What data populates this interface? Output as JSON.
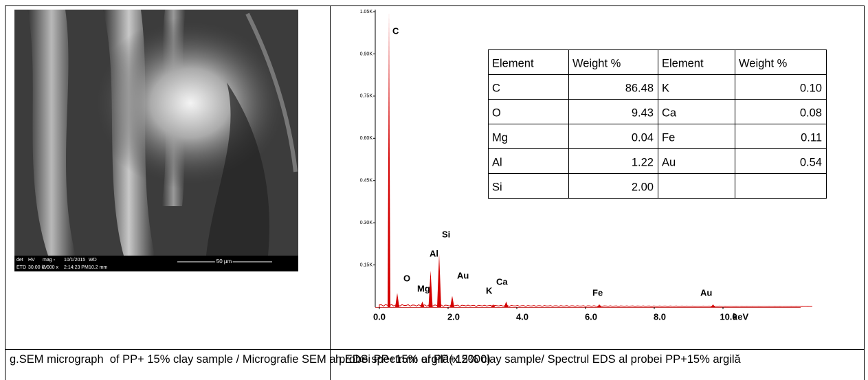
{
  "sem": {
    "info": [
      "det",
      "HV",
      "mag ▫",
      "10/1/2015",
      "WD",
      "ETD",
      "30.00 kV",
      "2 000 x",
      "2:14:23 PM",
      "10.2 mm"
    ],
    "scale_bar": "50 µm"
  },
  "spectrum": {
    "type": "spectrum",
    "color": "#d40000",
    "ylim": [
      0,
      1.05
    ],
    "yticks": [
      {
        "value": 0.15,
        "label": "0.15K"
      },
      {
        "value": 0.3,
        "label": "0.30K"
      },
      {
        "value": 0.45,
        "label": "0.45K"
      },
      {
        "value": 0.6,
        "label": "0.60K"
      },
      {
        "value": 0.75,
        "label": "0.75K"
      },
      {
        "value": 0.9,
        "label": "0.90K"
      },
      {
        "value": 1.05,
        "label": "1.05K"
      }
    ],
    "xlim": [
      0,
      12.6
    ],
    "xticks": [
      {
        "value": 0,
        "label": "0.0"
      },
      {
        "value": 2,
        "label": "2.0"
      },
      {
        "value": 4,
        "label": "4.0"
      },
      {
        "value": 6,
        "label": "6.0"
      },
      {
        "value": 8,
        "label": "8.0"
      },
      {
        "value": 10,
        "label": "10.0"
      }
    ],
    "x_label": "keV",
    "peaks": [
      {
        "label": "C",
        "energy": 0.28,
        "counts": 1.05
      },
      {
        "label": "O",
        "energy": 0.52,
        "counts": 0.05
      },
      {
        "label": "Mg",
        "energy": 1.25,
        "counts": 0.02
      },
      {
        "label": "Al",
        "energy": 1.49,
        "counts": 0.13
      },
      {
        "label": "Si",
        "energy": 1.74,
        "counts": 0.19
      },
      {
        "label": "Au",
        "energy": 2.12,
        "counts": 0.04
      },
      {
        "label": "K",
        "energy": 3.31,
        "counts": 0.01
      },
      {
        "label": "Ca",
        "energy": 3.69,
        "counts": 0.02
      },
      {
        "label": "Fe",
        "energy": 6.4,
        "counts": 0.01
      },
      {
        "label": "Au",
        "energy": 9.71,
        "counts": 0.01
      }
    ],
    "table": {
      "header": [
        "Element",
        "Weight %",
        "Element",
        "Weight %"
      ],
      "rows": [
        [
          "C",
          "86.48",
          "K",
          "0.10"
        ],
        [
          "O",
          "9.43",
          "Ca",
          "0.08"
        ],
        [
          "Mg",
          "0.04",
          "Fe",
          "0.11"
        ],
        [
          "Al",
          "1.22",
          "Au",
          "0.54"
        ],
        [
          "Si",
          "2.00"
        ]
      ]
    }
  },
  "captions": [
    "g.SEM micrograph  of PP+ 15% clay sample / Micrografie SEM a probei PP+15% argilă(x 2000)",
    "h.EDS spectrum of PP+15% clay sample/ Spectrul EDS al probei PP+15% argilă"
  ]
}
